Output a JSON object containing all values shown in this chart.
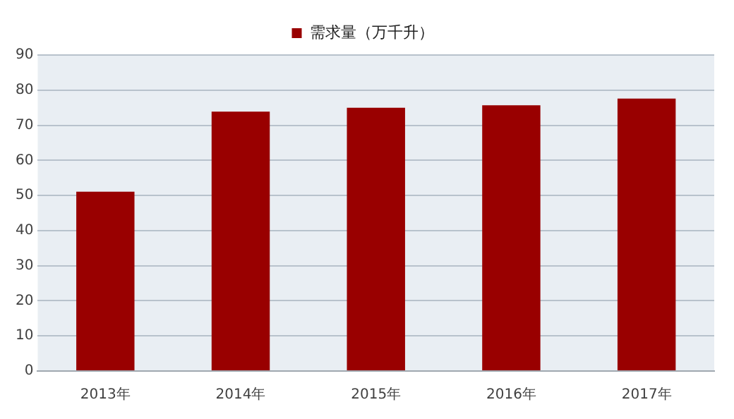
{
  "chart_data": {
    "type": "bar",
    "categories": [
      "2013年",
      "2014年",
      "2015年",
      "2016年",
      "2017年"
    ],
    "series": [
      {
        "name": "需求量（万千升）",
        "color": "#990000",
        "values": [
          51.1,
          73.9,
          75,
          75.7,
          77.6
        ]
      }
    ],
    "ylim": [
      0,
      90
    ],
    "yticks": [
      0,
      10,
      20,
      30,
      40,
      50,
      60,
      70,
      80,
      90
    ],
    "grid": "y",
    "legend": "top"
  }
}
